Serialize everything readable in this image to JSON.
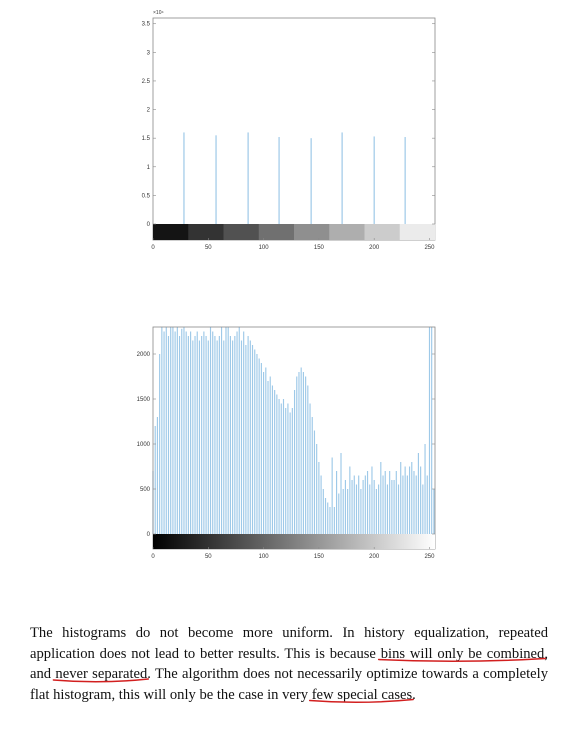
{
  "chart_data": [
    {
      "type": "bar",
      "title": "",
      "xlabel": "",
      "ylabel": "",
      "xlim": [
        0,
        255
      ],
      "ylim": [
        0,
        35000
      ],
      "y_exponent_label": "×10⁴",
      "x_ticks": [
        "0",
        "50",
        "100",
        "150",
        "200",
        "250"
      ],
      "y_ticks": [
        "0",
        "0.5",
        "1",
        "1.5",
        "2",
        "2.5",
        "3",
        "3.5"
      ],
      "colorbar": "grayscale, 8 discrete steps",
      "grid": false,
      "bins": [
        28,
        57,
        86,
        114,
        143,
        171,
        200,
        228
      ],
      "values": [
        16000,
        15500,
        16000,
        15200,
        15000,
        16000,
        15300,
        15200
      ]
    },
    {
      "type": "bar",
      "title": "",
      "xlabel": "",
      "ylabel": "",
      "xlim": [
        0,
        255
      ],
      "ylim": [
        0,
        2300
      ],
      "x_ticks": [
        "0",
        "50",
        "100",
        "150",
        "200",
        "250"
      ],
      "y_ticks": [
        "0",
        "500",
        "1000",
        "1500",
        "2000"
      ],
      "colorbar": "grayscale, continuous",
      "grid": false,
      "x": [
        0,
        2,
        4,
        6,
        8,
        10,
        12,
        14,
        16,
        18,
        20,
        22,
        24,
        26,
        28,
        30,
        32,
        34,
        36,
        38,
        40,
        42,
        44,
        46,
        48,
        50,
        52,
        54,
        56,
        58,
        60,
        62,
        64,
        66,
        68,
        70,
        72,
        74,
        76,
        78,
        80,
        82,
        84,
        86,
        88,
        90,
        92,
        94,
        96,
        98,
        100,
        102,
        104,
        106,
        108,
        110,
        112,
        114,
        116,
        118,
        120,
        122,
        124,
        126,
        128,
        130,
        132,
        134,
        136,
        138,
        140,
        142,
        144,
        146,
        148,
        150,
        152,
        154,
        156,
        158,
        160,
        162,
        164,
        166,
        168,
        170,
        172,
        174,
        176,
        178,
        180,
        182,
        184,
        186,
        188,
        190,
        192,
        194,
        196,
        198,
        200,
        202,
        204,
        206,
        208,
        210,
        212,
        214,
        216,
        218,
        220,
        222,
        224,
        226,
        228,
        230,
        232,
        234,
        236,
        238,
        240,
        242,
        244,
        246,
        248,
        250,
        252,
        254
      ],
      "values": [
        700,
        1200,
        1300,
        2000,
        2300,
        2250,
        2300,
        2200,
        2300,
        2300,
        2250,
        2300,
        2200,
        2280,
        2300,
        2250,
        2200,
        2250,
        2150,
        2200,
        2250,
        2150,
        2200,
        2250,
        2200,
        2150,
        2300,
        2250,
        2200,
        2150,
        2200,
        2300,
        2150,
        2300,
        2300,
        2200,
        2150,
        2200,
        2250,
        2300,
        2150,
        2250,
        2100,
        2200,
        2150,
        2100,
        2050,
        2000,
        1950,
        1900,
        1800,
        1850,
        1700,
        1750,
        1650,
        1600,
        1550,
        1500,
        1450,
        1500,
        1400,
        1450,
        1350,
        1400,
        1600,
        1750,
        1800,
        1850,
        1800,
        1750,
        1650,
        1450,
        1300,
        1150,
        1000,
        800,
        650,
        500,
        400,
        350,
        300,
        850,
        300,
        700,
        450,
        900,
        500,
        600,
        500,
        750,
        600,
        650,
        550,
        650,
        500,
        600,
        650,
        700,
        550,
        750,
        600,
        500,
        550,
        800,
        650,
        700,
        550,
        700,
        600,
        600,
        700,
        550,
        800,
        650,
        750,
        650,
        750,
        800,
        700,
        650,
        900,
        750,
        550,
        1000,
        650,
        2300,
        2300,
        500
      ]
    }
  ],
  "caption": {
    "parts": [
      "The histograms do not become more uniform. In history equalization, repeated application does not lead to better results. This is because ",
      "bins will only be combined",
      ", and ",
      "never separated",
      ". The algorithm does not necessarily optimize towards a completely flat histogram, this will only be the case in very ",
      "few special cases",
      "."
    ]
  },
  "colors": {
    "bar": "#9ec9e8",
    "axis": "#888888",
    "underline": "#d21f1f"
  }
}
